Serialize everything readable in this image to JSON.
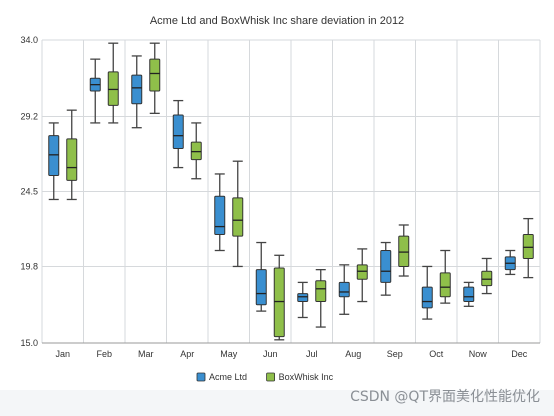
{
  "chart_data": {
    "type": "boxplot",
    "title": "Acme Ltd and BoxWhisk Inc share deviation in 2012",
    "categories": [
      "Jan",
      "Feb",
      "Mar",
      "Apr",
      "May",
      "Jun",
      "Jul",
      "Aug",
      "Sep",
      "Oct",
      "Now",
      "Dec"
    ],
    "ylim": [
      15.0,
      34.0
    ],
    "yticks": [
      "15.0",
      "19.8",
      "24.5",
      "29.2",
      "34.0"
    ],
    "grid": true,
    "legend_position": "bottom",
    "series": [
      {
        "name": "Acme Ltd",
        "color": "#3a8fd0",
        "values": [
          {
            "low": 24.0,
            "q1": 25.5,
            "median": 26.8,
            "q3": 28.0,
            "high": 28.8
          },
          {
            "low": 28.8,
            "q1": 30.8,
            "median": 31.2,
            "q3": 31.6,
            "high": 32.8
          },
          {
            "low": 28.5,
            "q1": 30.0,
            "median": 31.0,
            "q3": 31.8,
            "high": 33.0
          },
          {
            "low": 26.0,
            "q1": 27.2,
            "median": 28.0,
            "q3": 29.3,
            "high": 30.2
          },
          {
            "low": 20.8,
            "q1": 21.8,
            "median": 22.3,
            "q3": 24.2,
            "high": 25.6
          },
          {
            "low": 17.0,
            "q1": 17.4,
            "median": 18.1,
            "q3": 19.6,
            "high": 21.3
          },
          {
            "low": 16.6,
            "q1": 17.6,
            "median": 17.9,
            "q3": 18.1,
            "high": 18.8
          },
          {
            "low": 16.8,
            "q1": 17.9,
            "median": 18.2,
            "q3": 18.8,
            "high": 19.9
          },
          {
            "low": 18.0,
            "q1": 18.8,
            "median": 19.5,
            "q3": 20.8,
            "high": 21.3
          },
          {
            "low": 16.5,
            "q1": 17.2,
            "median": 17.6,
            "q3": 18.5,
            "high": 19.8
          },
          {
            "low": 17.3,
            "q1": 17.6,
            "median": 17.9,
            "q3": 18.5,
            "high": 18.8
          },
          {
            "low": 19.3,
            "q1": 19.6,
            "median": 20.0,
            "q3": 20.4,
            "high": 20.8
          }
        ]
      },
      {
        "name": "BoxWhisk Inc",
        "color": "#8fbf4a",
        "values": [
          {
            "low": 24.0,
            "q1": 25.2,
            "median": 26.0,
            "q3": 27.8,
            "high": 29.6
          },
          {
            "low": 28.8,
            "q1": 29.9,
            "median": 30.9,
            "q3": 32.0,
            "high": 33.8
          },
          {
            "low": 29.4,
            "q1": 30.8,
            "median": 31.9,
            "q3": 32.8,
            "high": 33.8
          },
          {
            "low": 25.3,
            "q1": 26.5,
            "median": 27.0,
            "q3": 27.6,
            "high": 28.8
          },
          {
            "low": 19.8,
            "q1": 21.7,
            "median": 22.7,
            "q3": 24.1,
            "high": 26.4
          },
          {
            "low": 15.2,
            "q1": 15.4,
            "median": 17.6,
            "q3": 19.7,
            "high": 20.5
          },
          {
            "low": 16.0,
            "q1": 17.6,
            "median": 18.4,
            "q3": 18.9,
            "high": 19.6
          },
          {
            "low": 17.6,
            "q1": 19.0,
            "median": 19.5,
            "q3": 19.9,
            "high": 20.9
          },
          {
            "low": 19.2,
            "q1": 19.8,
            "median": 20.7,
            "q3": 21.7,
            "high": 22.4
          },
          {
            "low": 17.5,
            "q1": 17.9,
            "median": 18.5,
            "q3": 19.4,
            "high": 20.8
          },
          {
            "low": 18.1,
            "q1": 18.6,
            "median": 19.0,
            "q3": 19.5,
            "high": 20.3
          },
          {
            "low": 19.1,
            "q1": 20.3,
            "median": 21.0,
            "q3": 21.8,
            "high": 22.8
          }
        ]
      }
    ]
  },
  "watermark": "CSDN @QT界面美化性能优化"
}
